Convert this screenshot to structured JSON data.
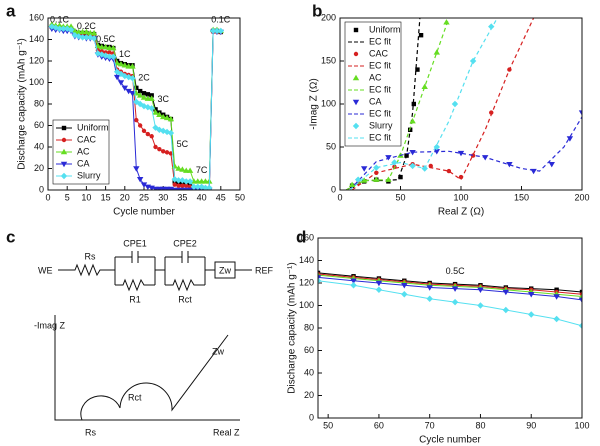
{
  "chart_data": [
    {
      "label": "a",
      "type": "line",
      "xlabel": "Cycle number",
      "ylabel": "Discharge capacity (mAh g⁻¹)",
      "xlim": [
        0,
        50
      ],
      "xticks": [
        0,
        5,
        10,
        15,
        20,
        25,
        30,
        35,
        40,
        45,
        50
      ],
      "ylim": [
        0,
        160
      ],
      "yticks": [
        0,
        20,
        40,
        60,
        80,
        100,
        120,
        140,
        160
      ],
      "legend": "lower left",
      "annotations": [
        "0.1C",
        "0.2C",
        "0.5C",
        "1C",
        "2C",
        "3C",
        "5C",
        "7C",
        "0.1C"
      ],
      "x": [
        1,
        2,
        3,
        4,
        5,
        6,
        7,
        8,
        9,
        10,
        11,
        12,
        13,
        14,
        15,
        16,
        17,
        18,
        19,
        20,
        21,
        22,
        23,
        24,
        25,
        26,
        27,
        28,
        29,
        30,
        31,
        32,
        33,
        34,
        35,
        36,
        37,
        38,
        39,
        40,
        41,
        42,
        43,
        44,
        45
      ],
      "series": [
        {
          "name": "Uniform",
          "color": "#000000",
          "marker": "square",
          "values": [
            152,
            151,
            151,
            150,
            150,
            150,
            147,
            146,
            146,
            146,
            145,
            145,
            135,
            134,
            133,
            133,
            132,
            120,
            118,
            117,
            116,
            116,
            95,
            92,
            90,
            89,
            88,
            75,
            72,
            70,
            68,
            66,
            8,
            7,
            7,
            7,
            6,
            2,
            2,
            2,
            1,
            1,
            148,
            148,
            147
          ]
        },
        {
          "name": "CAC",
          "color": "#d62020",
          "marker": "circle",
          "values": [
            151,
            150,
            150,
            149,
            149,
            149,
            145,
            144,
            144,
            143,
            143,
            143,
            130,
            129,
            128,
            128,
            127,
            112,
            110,
            108,
            107,
            106,
            65,
            60,
            55,
            52,
            50,
            40,
            38,
            36,
            35,
            34,
            5,
            4,
            4,
            4,
            3,
            1,
            1,
            1,
            1,
            1,
            147,
            147,
            147
          ]
        },
        {
          "name": "AC",
          "color": "#66dd22",
          "marker": "triangle",
          "values": [
            154,
            153,
            153,
            152,
            152,
            152,
            148,
            147,
            147,
            147,
            146,
            146,
            134,
            133,
            133,
            132,
            132,
            118,
            117,
            116,
            115,
            115,
            90,
            88,
            86,
            85,
            85,
            72,
            70,
            68,
            67,
            66,
            22,
            20,
            19,
            18,
            18,
            8,
            8,
            8,
            8,
            8,
            149,
            149,
            148
          ]
        },
        {
          "name": "CA",
          "color": "#2a2ad6",
          "marker": "down",
          "values": [
            150,
            149,
            149,
            148,
            148,
            148,
            143,
            142,
            142,
            141,
            141,
            141,
            126,
            124,
            123,
            122,
            122,
            105,
            100,
            95,
            92,
            90,
            20,
            10,
            5,
            3,
            2,
            1,
            1,
            1,
            1,
            1,
            0,
            0,
            0,
            0,
            0,
            0,
            0,
            0,
            0,
            0,
            147,
            147,
            147
          ]
        },
        {
          "name": "Slurry",
          "color": "#55e0f0",
          "marker": "diamond",
          "values": [
            152,
            151,
            150,
            150,
            150,
            149,
            144,
            143,
            142,
            142,
            142,
            141,
            127,
            126,
            125,
            124,
            124,
            110,
            108,
            106,
            105,
            104,
            82,
            80,
            78,
            77,
            76,
            58,
            56,
            55,
            54,
            53,
            10,
            9,
            9,
            8,
            8,
            3,
            3,
            3,
            2,
            2,
            148,
            148,
            148
          ]
        }
      ]
    },
    {
      "label": "b",
      "type": "scatter",
      "xlabel": "Real Z (Ω)",
      "ylabel": "-Imag Z (Ω)",
      "xlim": [
        0,
        200
      ],
      "xticks": [
        0,
        50,
        100,
        150,
        200
      ],
      "ylim": [
        0,
        200
      ],
      "yticks": [
        0,
        50,
        100,
        150,
        200
      ],
      "legend": "upper left",
      "series": [
        {
          "name": "Uniform",
          "color": "#000000",
          "marker": "square",
          "x": [
            10,
            20,
            30,
            40,
            50,
            55,
            58,
            61,
            64,
            67
          ],
          "values": [
            5,
            10,
            12,
            10,
            15,
            40,
            70,
            100,
            140,
            180
          ]
        },
        {
          "name": "EC fit",
          "color": "#000000",
          "line": "dashed",
          "x": [
            5,
            20,
            35,
            48,
            55,
            60,
            66
          ],
          "values": [
            0,
            11,
            11,
            12,
            40,
            90,
            200
          ]
        },
        {
          "name": "CAC",
          "color": "#d62020",
          "marker": "circle",
          "x": [
            15,
            30,
            45,
            60,
            75,
            90,
            100,
            110,
            125,
            140
          ],
          "values": [
            8,
            20,
            27,
            30,
            28,
            22,
            15,
            40,
            90,
            140
          ]
        },
        {
          "name": "EC fit",
          "color": "#d62020",
          "line": "dashed",
          "x": [
            10,
            30,
            60,
            90,
            100,
            120,
            140,
            160
          ],
          "values": [
            0,
            20,
            30,
            22,
            12,
            70,
            140,
            200
          ]
        },
        {
          "name": "AC",
          "color": "#66dd22",
          "marker": "triangle",
          "x": [
            10,
            20,
            30,
            40,
            50,
            60,
            70,
            80,
            88
          ],
          "values": [
            6,
            11,
            12,
            12,
            40,
            80,
            120,
            160,
            195
          ]
        },
        {
          "name": "EC fit",
          "color": "#66dd22",
          "line": "dashed",
          "x": [
            5,
            20,
            40,
            50,
            70,
            90
          ],
          "values": [
            0,
            11,
            12,
            40,
            120,
            200
          ]
        },
        {
          "name": "CA",
          "color": "#2a2ad6",
          "marker": "down",
          "x": [
            20,
            40,
            60,
            80,
            100,
            120,
            140,
            160,
            175,
            190,
            200
          ],
          "values": [
            25,
            38,
            44,
            45,
            43,
            38,
            30,
            22,
            30,
            60,
            90
          ]
        },
        {
          "name": "EC fit",
          "color": "#2a2ad6",
          "line": "dashed",
          "x": [
            8,
            30,
            60,
            90,
            120,
            150,
            165,
            185,
            200
          ],
          "values": [
            0,
            33,
            44,
            45,
            38,
            25,
            22,
            50,
            85
          ]
        },
        {
          "name": "Slurry",
          "color": "#55e0f0",
          "marker": "diamond",
          "x": [
            15,
            30,
            45,
            60,
            70,
            80,
            95,
            110,
            125
          ],
          "values": [
            12,
            26,
            32,
            28,
            25,
            50,
            100,
            150,
            190
          ]
        },
        {
          "name": "EC fit",
          "color": "#55e0f0",
          "line": "dashed",
          "x": [
            8,
            30,
            50,
            70,
            90,
            110,
            130
          ],
          "values": [
            0,
            26,
            32,
            25,
            80,
            150,
            200
          ]
        }
      ]
    },
    {
      "label": "d",
      "type": "line",
      "xlabel": "Cycle number",
      "ylabel": "Discharge capacity (mAh g⁻¹)",
      "xlim": [
        48,
        100
      ],
      "xticks": [
        50,
        60,
        70,
        80,
        90,
        100
      ],
      "ylim": [
        0,
        160
      ],
      "yticks": [
        0,
        20,
        40,
        60,
        80,
        100,
        120,
        140,
        160
      ],
      "annotations": [
        "0.5C"
      ],
      "x": [
        48,
        55,
        60,
        65,
        70,
        75,
        80,
        85,
        90,
        95,
        100
      ],
      "series": [
        {
          "color": "#000000",
          "marker": "square",
          "values": [
            129,
            126,
            124,
            122,
            120,
            119,
            118,
            116,
            115,
            114,
            112
          ]
        },
        {
          "color": "#d62020",
          "marker": "circle",
          "values": [
            128,
            125,
            123,
            121,
            119,
            118,
            117,
            115,
            114,
            112,
            110
          ]
        },
        {
          "color": "#66dd22",
          "marker": "triangle",
          "values": [
            127,
            124,
            122,
            120,
            118,
            117,
            116,
            114,
            112,
            110,
            108
          ]
        },
        {
          "color": "#2a2ad6",
          "marker": "down",
          "values": [
            125,
            122,
            120,
            118,
            116,
            115,
            114,
            112,
            110,
            108,
            105
          ]
        },
        {
          "color": "#55e0f0",
          "marker": "diamond",
          "values": [
            122,
            118,
            114,
            110,
            106,
            103,
            100,
            96,
            92,
            88,
            82
          ]
        }
      ]
    }
  ],
  "diagram": {
    "label": "c",
    "we": "WE",
    "rs": "Rs",
    "cpe1": "CPE1",
    "r1": "R1",
    "cpe2": "CPE2",
    "rct": "Rct",
    "zw": "Zw",
    "ref": "REF",
    "sketch": {
      "ylabel": "-Imag Z",
      "zw": "Zw",
      "rct": "Rct",
      "rs": "Rs",
      "xlabel": "Real Z"
    }
  }
}
